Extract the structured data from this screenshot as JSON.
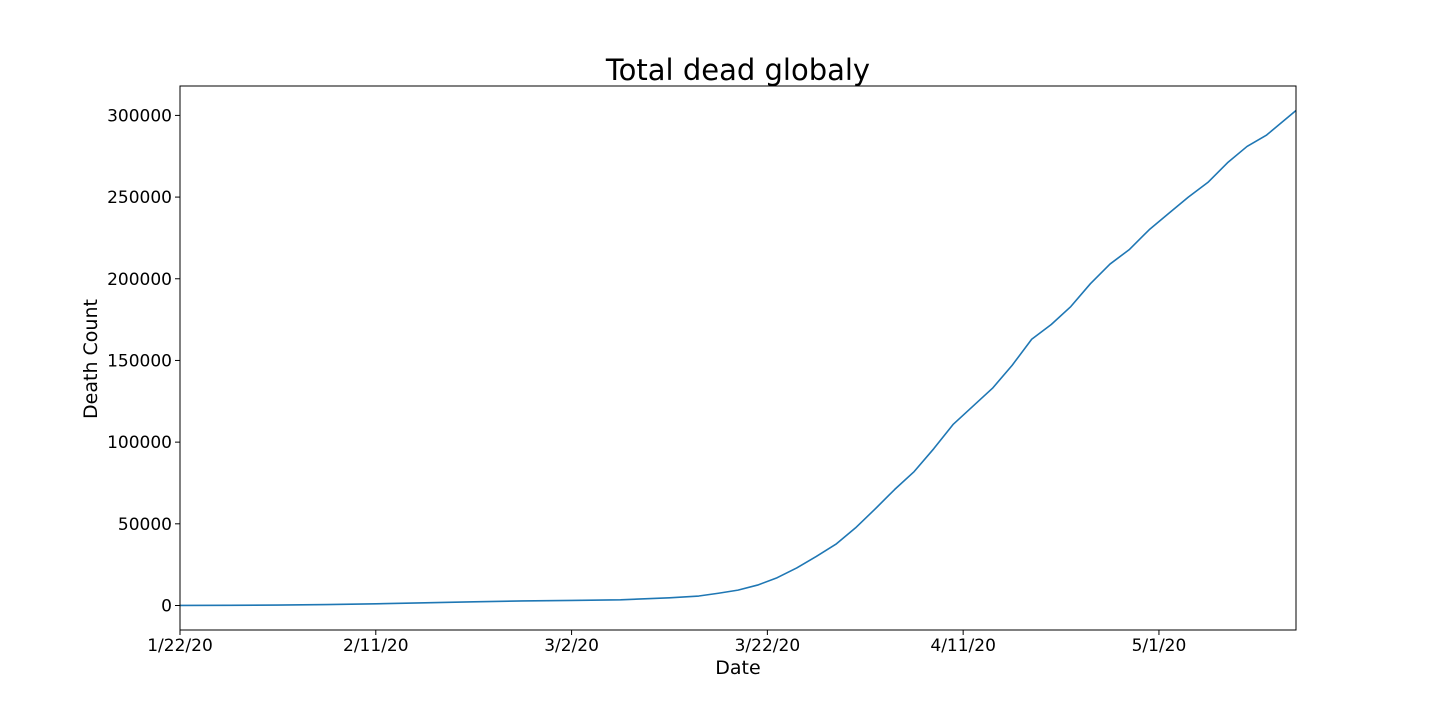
{
  "chart_data": {
    "type": "line",
    "title": "Total dead globaly",
    "xlabel": "Date",
    "ylabel": "Death Count",
    "x_ticks": [
      "1/22/20",
      "2/11/20",
      "3/2/20",
      "3/22/20",
      "4/11/20",
      "5/1/20"
    ],
    "y_ticks": [
      "0",
      "50000",
      "100000",
      "150000",
      "200000",
      "250000",
      "300000"
    ],
    "ylim": [
      -15000,
      318000
    ],
    "xlim": [
      "1/22/20",
      "5/15/20"
    ],
    "grid": false,
    "line_color": "#1f77b4",
    "series": [
      {
        "x": [
          "1/22/20",
          "1/27/20",
          "2/1/20",
          "2/6/20",
          "2/11/20",
          "2/16/20",
          "2/21/20",
          "2/26/20",
          "3/2/20",
          "3/7/20",
          "3/12/20",
          "3/15/20",
          "3/17/20",
          "3/19/20",
          "3/21/20",
          "3/23/20",
          "3/25/20",
          "3/27/20",
          "3/29/20",
          "3/31/20",
          "4/2/20",
          "4/4/20",
          "4/6/20",
          "4/8/20",
          "4/10/20",
          "4/12/20",
          "4/14/20",
          "4/16/20",
          "4/18/20",
          "4/20/20",
          "4/22/20",
          "4/24/20",
          "4/26/20",
          "4/28/20",
          "4/30/20",
          "5/2/20",
          "5/4/20",
          "5/6/20",
          "5/8/20",
          "5/10/20",
          "5/12/20",
          "5/15/20"
        ],
        "values": [
          17,
          82,
          259,
          565,
          1018,
          1666,
          2247,
          2771,
          3100,
          3500,
          4700,
          5800,
          7500,
          9400,
          12500,
          17000,
          23000,
          30000,
          37500,
          47500,
          59000,
          71000,
          82000,
          96000,
          111000,
          122000,
          133000,
          147000,
          163000,
          172000,
          183000,
          197000,
          209000,
          218000,
          230000,
          240000,
          250000,
          259000,
          271000,
          281000,
          288000,
          303000
        ]
      }
    ]
  }
}
